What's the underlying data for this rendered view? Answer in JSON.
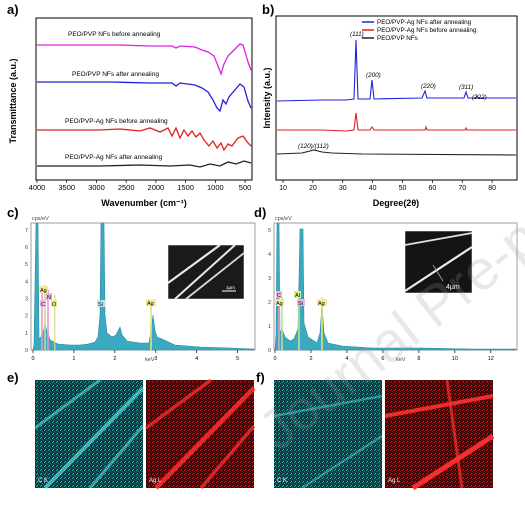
{
  "panels": {
    "a": {
      "label": "a)"
    },
    "b": {
      "label": "b)"
    },
    "c": {
      "label": "c)"
    },
    "d": {
      "label": "d)"
    },
    "e": {
      "label": "e)"
    },
    "f": {
      "label": "f)"
    }
  },
  "chart_data": [
    {
      "id": "a",
      "type": "line",
      "xlabel": "Wavenumber (cm⁻¹)",
      "ylabel": "Transmittance (a.u.)",
      "xlim": [
        4000,
        400
      ],
      "xticks": [
        4000,
        3500,
        3000,
        2500,
        2000,
        1500,
        1000,
        500
      ],
      "series": [
        {
          "name": "PEO/PVP NFs before annealing",
          "color": "#e020e0"
        },
        {
          "name": "PEO/PVP NFs after annealing",
          "color": "#2222dd"
        },
        {
          "name": "PEO/PVP-Ag NFs before annealing",
          "color": "#dd2222"
        },
        {
          "name": "PEO/PVP-Ag NFs after annealing",
          "color": "#222222"
        }
      ]
    },
    {
      "id": "b",
      "type": "line",
      "xlabel": "Degree(2θ)",
      "ylabel": "Intensity (a.u.)",
      "xlim": [
        8,
        88
      ],
      "xticks": [
        10,
        20,
        30,
        40,
        50,
        60,
        70,
        80
      ],
      "peak_labels": [
        {
          "text": "(111)",
          "x": 38.1
        },
        {
          "text": "(200)",
          "x": 44.3
        },
        {
          "text": "(220)",
          "x": 64.5
        },
        {
          "text": "(311)",
          "x": 77.4
        },
        {
          "text": "(222)",
          "x": 81.5
        },
        {
          "text": "(120)/(112)",
          "x": 19.5
        }
      ],
      "series": [
        {
          "name": "PEO/PVP-Ag NFs after annealing",
          "color": "#2222dd"
        },
        {
          "name": "PEO/PVP-Ag NFs before annealing",
          "color": "#dd2222"
        },
        {
          "name": "PEO/PVP NFs",
          "color": "#222222"
        }
      ]
    },
    {
      "id": "c",
      "type": "area",
      "ylabel": "cps/eV",
      "xlabel": "keV",
      "xlim": [
        0,
        5.4
      ],
      "ylim": [
        0,
        7.4
      ],
      "xticks": [
        0,
        1,
        2,
        3,
        4,
        5
      ],
      "yticks": [
        0,
        1,
        2,
        3,
        4,
        5,
        6,
        7
      ],
      "elements": [
        {
          "text": "Ag",
          "x": 0.4
        },
        {
          "text": "N",
          "x": 0.39
        },
        {
          "text": "C",
          "x": 0.28
        },
        {
          "text": "O",
          "x": 0.53
        },
        {
          "text": "Si",
          "x": 1.74
        },
        {
          "text": "Ag",
          "x": 2.98
        }
      ],
      "scale_bar": "1µm"
    },
    {
      "id": "d",
      "type": "area",
      "ylabel": "cps/eV",
      "xlabel": "keV",
      "xlim": [
        0,
        13.4
      ],
      "ylim": [
        0,
        5.3
      ],
      "xticks": [
        0,
        2,
        4,
        6,
        8,
        10,
        12
      ],
      "yticks": [
        0,
        1,
        2,
        3,
        4,
        5
      ],
      "elements": [
        {
          "text": "C",
          "x": 0.28
        },
        {
          "text": "Ag",
          "x": 0.4
        },
        {
          "text": "Al",
          "x": 1.49
        },
        {
          "text": "Si",
          "x": 1.74
        },
        {
          "text": "Ag",
          "x": 2.98
        }
      ],
      "scale_bar": "4µm"
    }
  ],
  "maps": {
    "e": {
      "tiles": [
        {
          "label": "C K",
          "color": "#33cccc"
        },
        {
          "label": "Ag L",
          "color": "#ee2222"
        }
      ]
    },
    "f": {
      "tiles": [
        {
          "label": "C K",
          "color": "#33cccc"
        },
        {
          "label": "Ag L",
          "color": "#ee2222"
        }
      ]
    }
  },
  "watermark": "Journal Pre-proof"
}
